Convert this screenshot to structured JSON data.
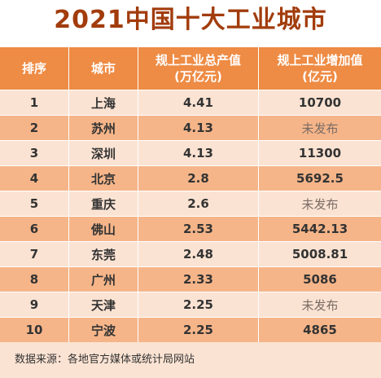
{
  "title": "2021中国十大工业城市",
  "headers": {
    "rank": "排序",
    "city": "城市",
    "output_line1": "规上工业总产值",
    "output_line2": "(万亿元)",
    "added_line1": "规上工业增加值",
    "added_line2": "(亿元)"
  },
  "rows": [
    {
      "rank": "1",
      "city": "上海",
      "output": "4.41",
      "added": "10700"
    },
    {
      "rank": "2",
      "city": "苏州",
      "output": "4.13",
      "added": "未发布"
    },
    {
      "rank": "3",
      "city": "深圳",
      "output": "4.13",
      "added": "11300"
    },
    {
      "rank": "4",
      "city": "北京",
      "output": "2.8",
      "added": "5692.5"
    },
    {
      "rank": "5",
      "city": "重庆",
      "output": "2.6",
      "added": "未发布"
    },
    {
      "rank": "6",
      "city": "佛山",
      "output": "2.53",
      "added": "5442.13"
    },
    {
      "rank": "7",
      "city": "东莞",
      "output": "2.48",
      "added": "5008.81"
    },
    {
      "rank": "8",
      "city": "广州",
      "output": "2.33",
      "added": "5086"
    },
    {
      "rank": "9",
      "city": "天津",
      "output": "2.25",
      "added": "未发布"
    },
    {
      "rank": "10",
      "city": "宁波",
      "output": "2.25",
      "added": "4865"
    }
  ],
  "footer": "数据来源：各地官方媒体或统计局网站",
  "colors": {
    "title": "#a23c0c",
    "header_bg": "#ee8b44",
    "row_light": "#fbe3d3",
    "row_dark": "#f5b589"
  }
}
